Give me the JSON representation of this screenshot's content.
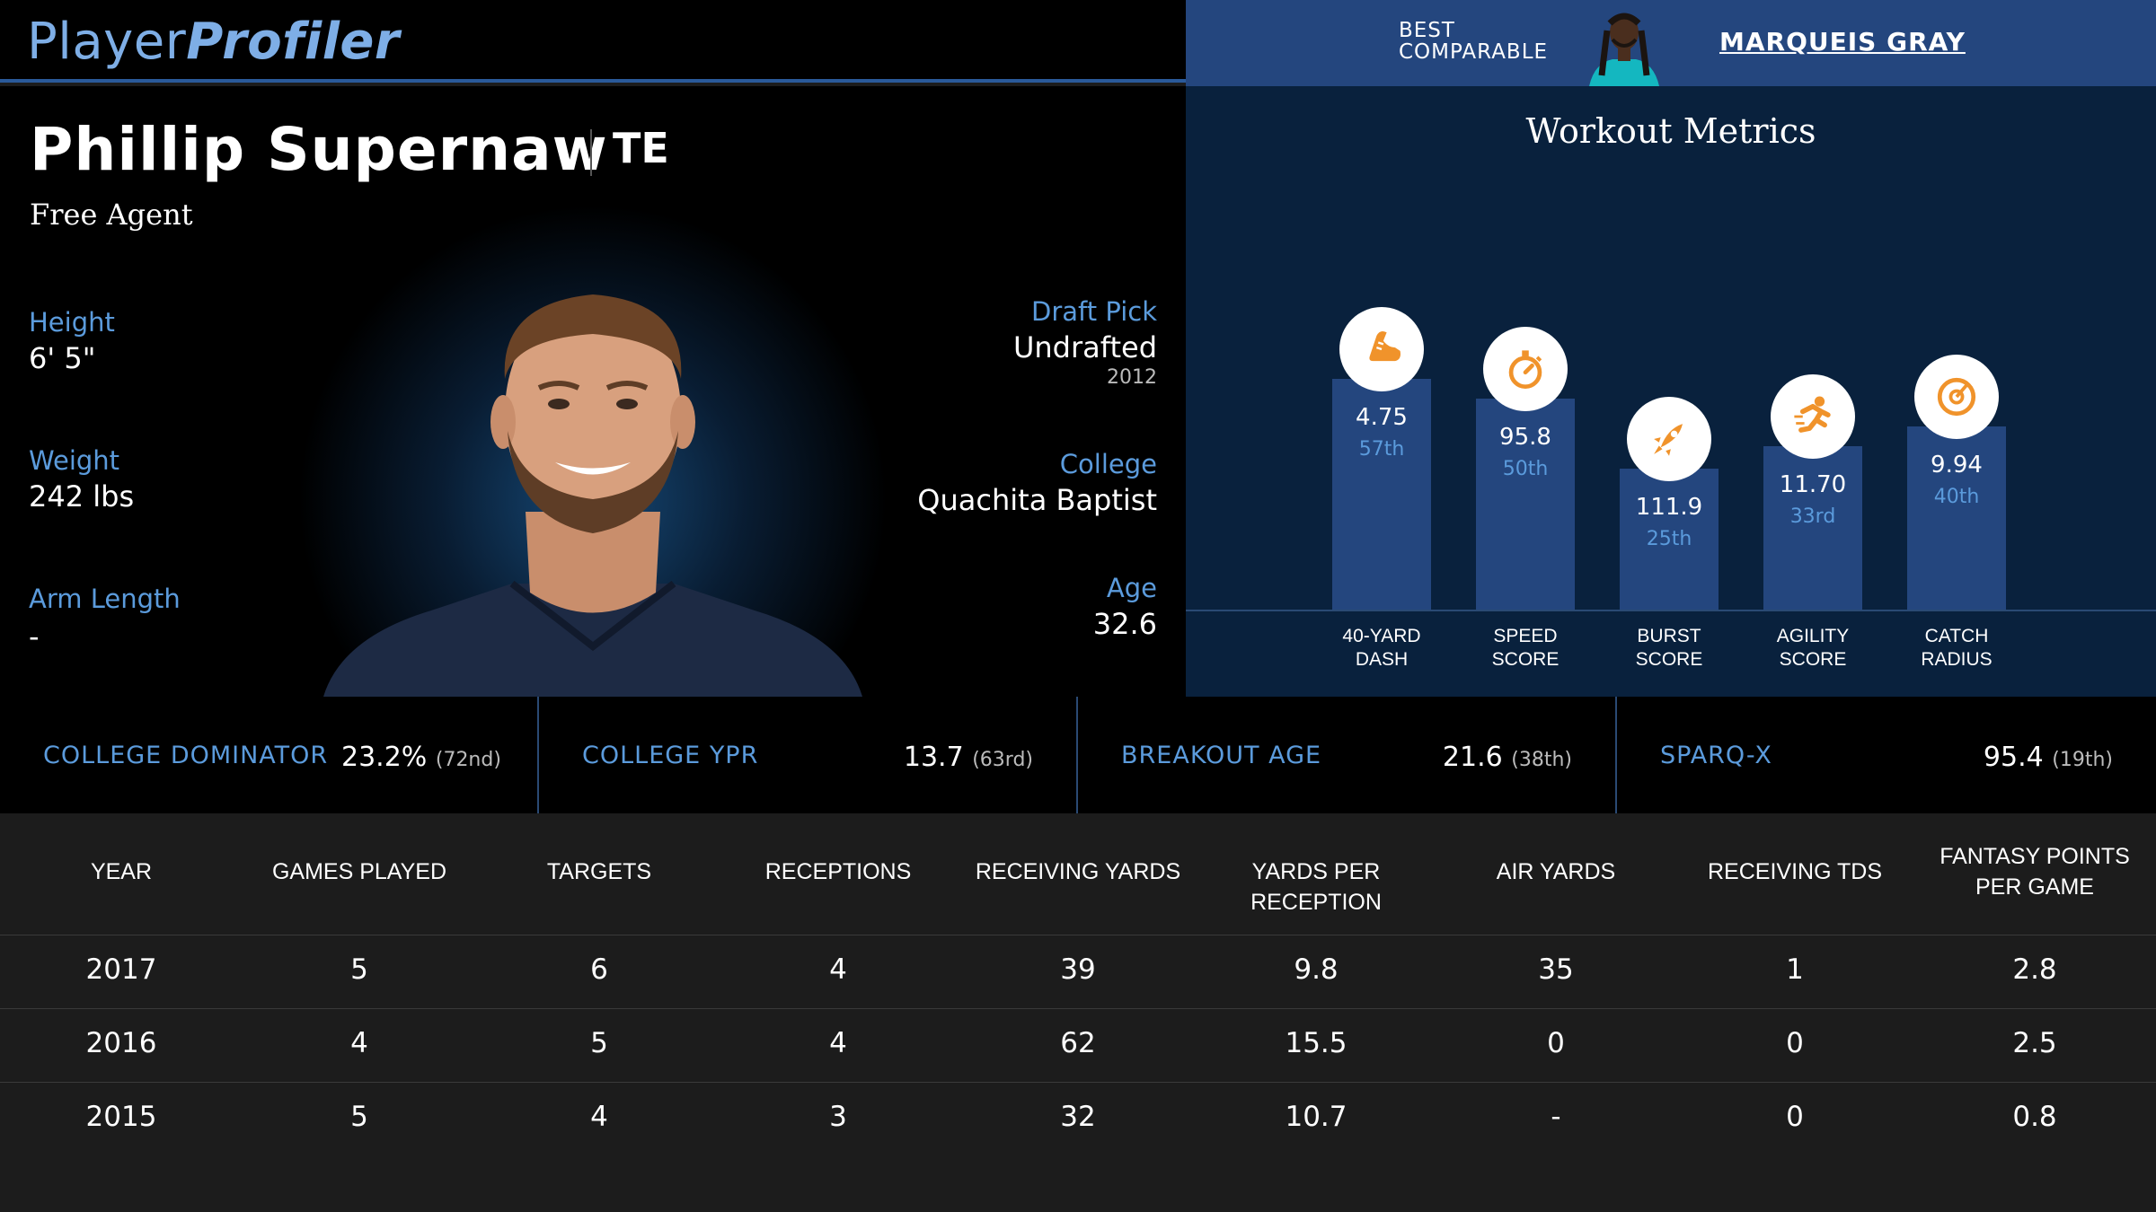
{
  "header": {
    "logo_part1": "Player",
    "logo_part2": "Profiler",
    "comp_label_line1": "BEST",
    "comp_label_line2": "COMPARABLE",
    "comp_name": "MARQUEIS GRAY"
  },
  "player": {
    "name": "Phillip Supernaw",
    "position": "TE",
    "team": "Free Agent",
    "height_label": "Height",
    "height": "6' 5\"",
    "weight_label": "Weight",
    "weight": "242 lbs",
    "arm_label": "Arm Length",
    "arm": "-",
    "draft_label": "Draft Pick",
    "draft": "Undrafted",
    "draft_year": "2012",
    "college_label": "College",
    "college": "Quachita Baptist",
    "age_label": "Age",
    "age": "32.6"
  },
  "workout": {
    "title": "Workout Metrics",
    "metrics": [
      {
        "label_l1": "40-YARD",
        "label_l2": "DASH",
        "value": "4.75",
        "pct": "57th",
        "percentile": 57,
        "icon": "running-shoe-icon"
      },
      {
        "label_l1": "SPEED",
        "label_l2": "SCORE",
        "value": "95.8",
        "pct": "50th",
        "percentile": 50,
        "icon": "stopwatch-icon"
      },
      {
        "label_l1": "BURST",
        "label_l2": "SCORE",
        "value": "111.9",
        "pct": "25th",
        "percentile": 25,
        "icon": "rocket-icon"
      },
      {
        "label_l1": "AGILITY",
        "label_l2": "SCORE",
        "value": "11.70",
        "pct": "33rd",
        "percentile": 33,
        "icon": "running-person-icon"
      },
      {
        "label_l1": "CATCH",
        "label_l2": "RADIUS",
        "value": "9.94",
        "pct": "40th",
        "percentile": 40,
        "icon": "target-icon"
      }
    ],
    "colors": {
      "bar": "#24467e",
      "icon": "#f0932b",
      "pct": "#5b9bdc"
    }
  },
  "stats": [
    {
      "label": "COLLEGE DOMINATOR",
      "value": "23.2%",
      "rank": "(72nd)"
    },
    {
      "label": "COLLEGE YPR",
      "value": "13.7",
      "rank": "(63rd)"
    },
    {
      "label": "BREAKOUT AGE",
      "value": "21.6",
      "rank": "(38th)"
    },
    {
      "label": "SPARQ-X",
      "value": "95.4",
      "rank": "(19th)"
    }
  ],
  "table": {
    "headers": [
      "YEAR",
      "GAMES PLAYED",
      "TARGETS",
      "RECEPTIONS",
      "RECEIVING YARDS",
      "YARDS PER RECEPTION",
      "AIR YARDS",
      "RECEIVING TDS",
      "FANTASY POINTS PER GAME"
    ],
    "rows": [
      [
        "2017",
        "5",
        "6",
        "4",
        "39",
        "9.8",
        "35",
        "1",
        "2.8"
      ],
      [
        "2016",
        "4",
        "5",
        "4",
        "62",
        "15.5",
        "0",
        "0",
        "2.5"
      ],
      [
        "2015",
        "5",
        "4",
        "3",
        "32",
        "10.7",
        "-",
        "0",
        "0.8"
      ]
    ]
  }
}
